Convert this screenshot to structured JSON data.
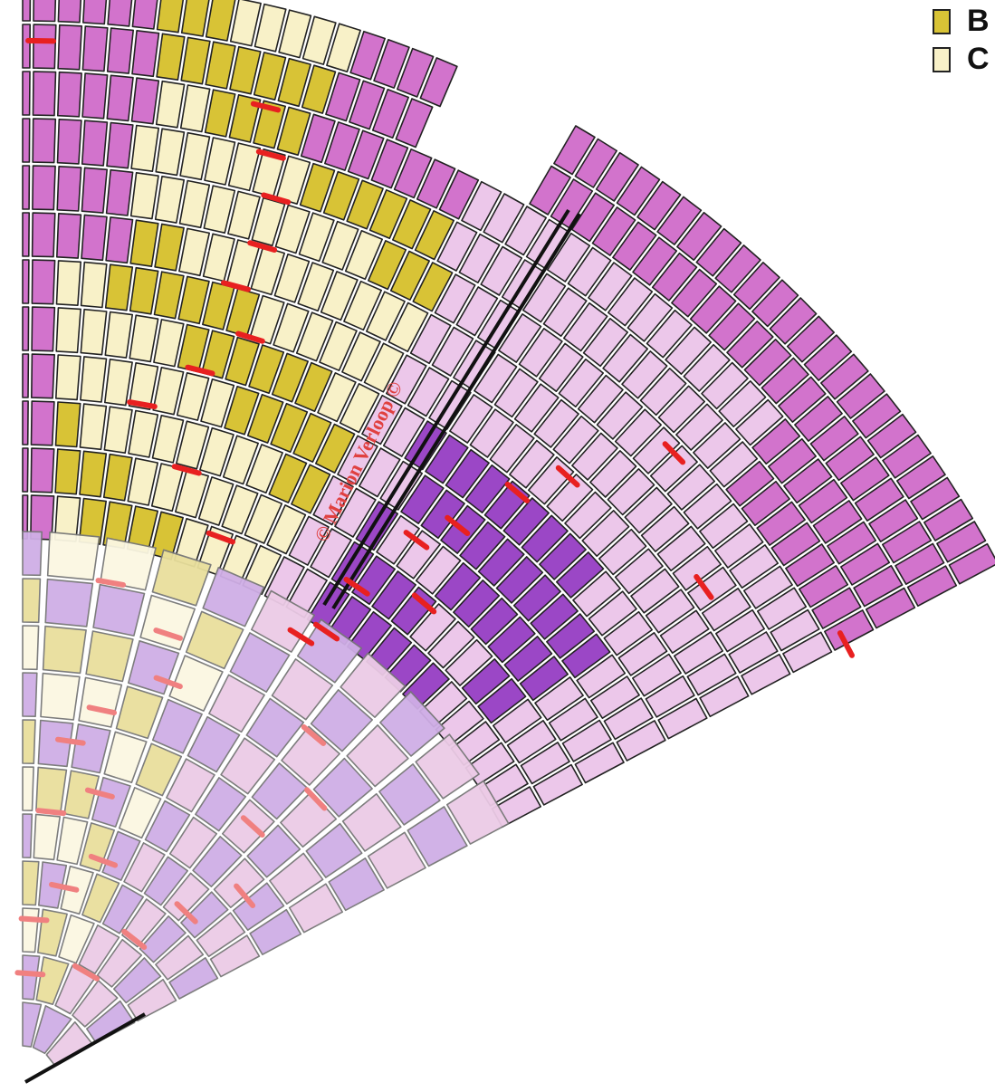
{
  "legend": [
    {
      "label": "B",
      "color": "#d8c336"
    },
    {
      "label": "C",
      "color": "#f8f1c8"
    }
  ],
  "watermark": "© Marion Verloop ©",
  "palette": {
    "magenta": "#d273cc",
    "cream": "#f8f1c8",
    "mustard": "#d8c336",
    "lavender": "#ecc7ea",
    "violet": "#9b47c6",
    "dim_lilac": "#cfaee6",
    "dim_pink": "#eccbe6",
    "dim_yellow": "#e9df9c",
    "dim_cream": "#fbf7e2",
    "mark": "#e82020",
    "dim_mark": "#f08080"
  }
}
